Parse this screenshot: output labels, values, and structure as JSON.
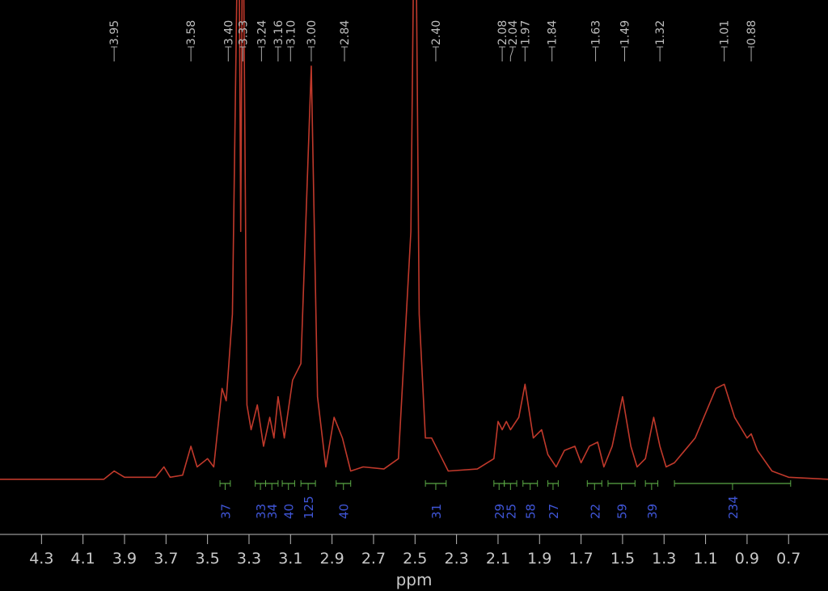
{
  "chart_data": {
    "type": "line",
    "xlabel": "ppm",
    "x_reversed": true,
    "xlim": [
      4.5,
      0.51
    ],
    "ylim": [
      -1.4,
      116
    ],
    "xticks": [
      4.3,
      4.1,
      3.9,
      3.7,
      3.5,
      3.3,
      3.1,
      2.9,
      2.7,
      2.5,
      2.3,
      2.1,
      1.9,
      1.7,
      1.5,
      1.3,
      1.1,
      0.9,
      0.7
    ],
    "x": [
      4.5,
      4.0,
      3.95,
      3.9,
      3.75,
      3.71,
      3.68,
      3.62,
      3.58,
      3.55,
      3.5,
      3.47,
      3.43,
      3.41,
      3.38,
      3.35,
      3.34,
      3.33,
      3.31,
      3.29,
      3.26,
      3.23,
      3.2,
      3.18,
      3.16,
      3.13,
      3.09,
      3.05,
      3.0,
      2.97,
      2.93,
      2.89,
      2.85,
      2.81,
      2.75,
      2.65,
      2.58,
      2.52,
      2.5,
      2.48,
      2.45,
      2.42,
      2.38,
      2.34,
      2.2,
      2.12,
      2.1,
      2.08,
      2.06,
      2.04,
      2.0,
      1.97,
      1.93,
      1.89,
      1.86,
      1.82,
      1.78,
      1.73,
      1.7,
      1.66,
      1.62,
      1.59,
      1.55,
      1.5,
      1.46,
      1.43,
      1.39,
      1.35,
      1.32,
      1.29,
      1.25,
      1.2,
      1.15,
      1.05,
      1.01,
      0.96,
      0.9,
      0.88,
      0.85,
      0.78,
      0.7,
      0.51
    ],
    "series": [
      {
        "color": "#c0392b",
        "values": [
          0,
          0,
          2,
          0.5,
          0.5,
          3,
          0.5,
          1,
          8,
          3,
          5,
          3,
          22,
          19,
          40,
          150,
          60,
          150,
          18,
          12,
          18,
          8,
          15,
          10,
          20,
          10,
          24,
          28,
          100,
          20,
          3,
          15,
          10,
          2,
          3,
          2.5,
          5,
          60,
          160,
          40,
          10,
          10,
          6,
          2,
          2.5,
          5,
          14,
          12,
          14,
          12,
          15,
          23,
          10,
          12,
          6,
          3,
          7,
          8,
          4,
          8,
          9,
          3,
          8,
          20,
          8,
          3,
          5,
          15,
          8,
          3,
          4,
          7,
          10,
          22,
          23,
          15,
          10,
          11,
          7,
          2,
          0.5,
          0
        ]
      }
    ],
    "peak_labels": [
      "3.95",
      "3.58",
      "3.40",
      "3.33",
      "3.24",
      "3.16",
      "3.10",
      "3.00",
      "2.84",
      "2.40",
      "2.08",
      "2.04",
      "1.97",
      "1.84",
      "1.63",
      "1.49",
      "1.32",
      "1.01",
      "0.88"
    ],
    "peaks": [
      3.95,
      3.58,
      3.4,
      3.33,
      3.24,
      3.16,
      3.1,
      3.0,
      2.84,
      2.4,
      2.08,
      2.04,
      1.97,
      1.84,
      1.63,
      1.49,
      1.32,
      1.01,
      0.88
    ],
    "integrals": [
      {
        "range": [
          3.44,
          3.39
        ],
        "value": 37
      },
      {
        "range": [
          3.27,
          3.22
        ],
        "value": 33
      },
      {
        "range": [
          3.22,
          3.16
        ],
        "value": 34
      },
      {
        "range": [
          3.14,
          3.08
        ],
        "value": 40
      },
      {
        "range": [
          3.05,
          2.98
        ],
        "value": 125
      },
      {
        "range": [
          2.88,
          2.81
        ],
        "value": 40
      },
      {
        "range": [
          2.45,
          2.35
        ],
        "value": 31
      },
      {
        "range": [
          2.12,
          2.07
        ],
        "value": 29
      },
      {
        "range": [
          2.07,
          2.01
        ],
        "value": 25
      },
      {
        "range": [
          1.98,
          1.91
        ],
        "value": 58
      },
      {
        "range": [
          1.86,
          1.81
        ],
        "value": 27
      },
      {
        "range": [
          1.67,
          1.6
        ],
        "value": 22
      },
      {
        "range": [
          1.57,
          1.44
        ],
        "value": 59
      },
      {
        "range": [
          1.39,
          1.33
        ],
        "value": 39
      },
      {
        "range": [
          1.25,
          0.69
        ],
        "value": 234
      }
    ]
  }
}
